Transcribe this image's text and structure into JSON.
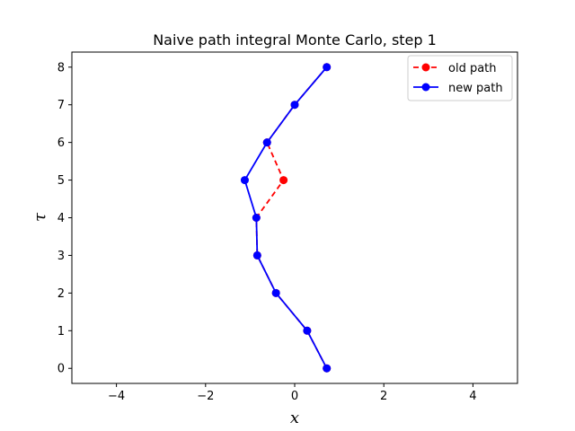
{
  "chart_data": {
    "type": "line",
    "title": "Naive path integral Monte Carlo, step 1",
    "xlabel": "x",
    "ylabel": "τ",
    "xlim": [
      -5,
      5
    ],
    "ylim": [
      -0.4,
      8.4
    ],
    "xticks": [
      -4,
      -2,
      0,
      2,
      4
    ],
    "xtick_labels": [
      "−4",
      "−2",
      "0",
      "2",
      "4"
    ],
    "yticks": [
      0,
      1,
      2,
      3,
      4,
      5,
      6,
      7,
      8
    ],
    "ytick_labels": [
      "0",
      "1",
      "2",
      "3",
      "4",
      "5",
      "6",
      "7",
      "8"
    ],
    "grid": false,
    "legend_position": "top-right",
    "series": [
      {
        "name": "old path",
        "color": "#ff0000",
        "linestyle": "dashed",
        "marker": "circle",
        "x": [
          0.72,
          0.28,
          -0.42,
          -0.84,
          -0.86,
          -0.25,
          -0.62,
          0.0,
          0.72
        ],
        "y": [
          0,
          1,
          2,
          3,
          4,
          5,
          6,
          7,
          8
        ]
      },
      {
        "name": "new path",
        "color": "#0000ff",
        "linestyle": "solid",
        "marker": "circle",
        "x": [
          0.72,
          0.28,
          -0.42,
          -0.84,
          -0.86,
          -1.12,
          -0.62,
          0.0,
          0.72
        ],
        "y": [
          0,
          1,
          2,
          3,
          4,
          5,
          6,
          7,
          8
        ]
      }
    ]
  }
}
